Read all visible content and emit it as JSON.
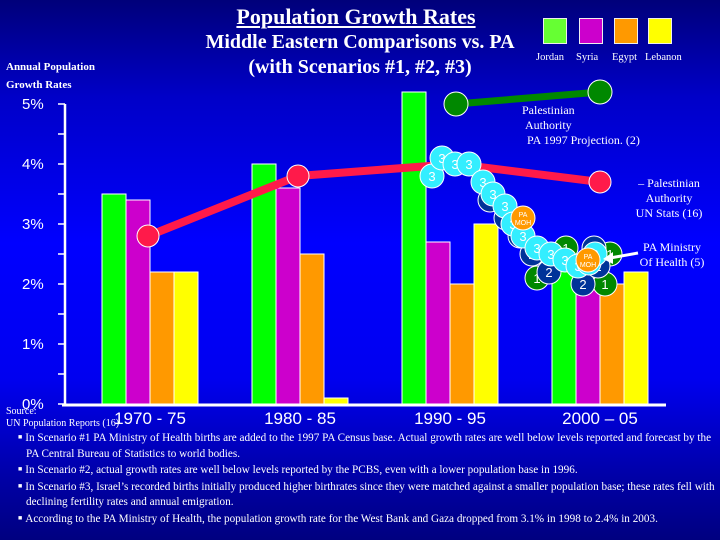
{
  "title": "Population Growth Rates",
  "subtitle_line1": "Middle Eastern Comparisons vs. PA",
  "subtitle_line2": "(with Scenarios #1, #2, #3)",
  "y_axis_label_line1": "Annual Population",
  "y_axis_label_line2": "Growth Rates",
  "legend": [
    {
      "name": "Jordan",
      "color": "#00ff00"
    },
    {
      "name": "Syria",
      "color": "#cc00cc"
    },
    {
      "name": "Egypt",
      "color": "#ff9900"
    },
    {
      "name": "Lebanon",
      "color": "#ffff00"
    }
  ],
  "annotations": {
    "pa_projection": [
      "Palestinian",
      "Authority",
      "PA 1997 Projection. (2)"
    ],
    "pa_un_stats": [
      "– Palestinian",
      "Authority",
      "UN Stats (16)"
    ],
    "pa_moh": [
      "PA Ministry",
      "Of Health (5)"
    ],
    "moh_badge_line1": "PA",
    "moh_badge_line2": "MOH"
  },
  "source_line1": "Source:",
  "source_line2": "UN Population Reports (16)",
  "notes": [
    "In Scenario #1 PA Ministry of Health births are added to the 1997 PA Census base.  Actual growth rates are well below levels reported and forecast by the PA Central Bureau of Statistics to world bodies.",
    "In Scenario #2, actual growth rates are well below levels reported by the PCBS, even with a lower population base in 1996.",
    "In Scenario #3, Israel’s recorded births initially produced higher birthrates since they were matched against a smaller population base; these rates fell with declining fertility rates and annual emigration.",
    "According to the PA Ministry of Health, the population growth rate for the West Bank and Gaza dropped from 3.1% in 1998 to 2.4% in 2003."
  ],
  "chart_data": {
    "type": "bar",
    "title": "Population Growth Rates",
    "subtitle": "Middle Eastern Comparisons vs. PA (with Scenarios #1, #2, #3)",
    "xlabel": "",
    "ylabel": "Annual Population Growth Rates",
    "ylim": [
      0,
      5
    ],
    "y_ticks": [
      "0%",
      "1%",
      "2%",
      "3%",
      "4%",
      "5%"
    ],
    "y_tick_values": [
      0,
      1,
      2,
      3,
      4,
      5
    ],
    "grid": false,
    "legend_position": "top-right",
    "categories": [
      "1970 - 75",
      "1980 - 85",
      "1990 - 95",
      "2000 – 05"
    ],
    "series": [
      {
        "name": "Jordan",
        "color": "#00ff00",
        "values": [
          3.5,
          4.0,
          5.2,
          2.4
        ]
      },
      {
        "name": "Syria",
        "color": "#cc00cc",
        "values": [
          3.4,
          3.6,
          2.7,
          2.4
        ]
      },
      {
        "name": "Egypt",
        "color": "#ff9900",
        "values": [
          2.2,
          2.5,
          2.0,
          2.0
        ]
      },
      {
        "name": "Lebanon",
        "color": "#ffff00",
        "values": [
          2.2,
          0.1,
          3.0,
          2.2
        ]
      }
    ],
    "lines": [
      {
        "name": "Palestinian Authority UN Stats (16)",
        "color": "#ff1a4a",
        "type": "line",
        "x": [
          "1970 - 75",
          "1980 - 85",
          "1990 - 95",
          "2000 – 05"
        ],
        "values": [
          2.8,
          3.8,
          4.0,
          3.7
        ]
      },
      {
        "name": "Palestinian Authority PA 1997 Projection (2)",
        "color": "#008800",
        "type": "line",
        "x": [
          "1990 - 95",
          "2000 – 05"
        ],
        "values": [
          5.0,
          5.2
        ]
      }
    ],
    "scenario_markers": [
      {
        "label": "3",
        "scenario": 3,
        "color": "#33eeff",
        "values": [
          3.8,
          4.1,
          4.0,
          4.0,
          3.7,
          3.5,
          3.3,
          3.0,
          2.8,
          2.6,
          2.5,
          2.4,
          2.3,
          2.35,
          2.5
        ]
      },
      {
        "label": "2",
        "scenario": 2,
        "color": "#003399",
        "values": [
          3.4,
          3.1,
          2.8,
          2.5,
          2.2,
          2.0,
          2.3,
          2.6
        ]
      },
      {
        "label": "1",
        "scenario": 1,
        "color": "#008800",
        "values": [
          2.1,
          2.4,
          2.6,
          2.3,
          2.1,
          2.0,
          2.4,
          2.5
        ]
      },
      {
        "label": "PA MOH",
        "scenario": "MOH",
        "color": "#ff9900",
        "values": [
          3.1,
          2.4
        ]
      }
    ]
  }
}
